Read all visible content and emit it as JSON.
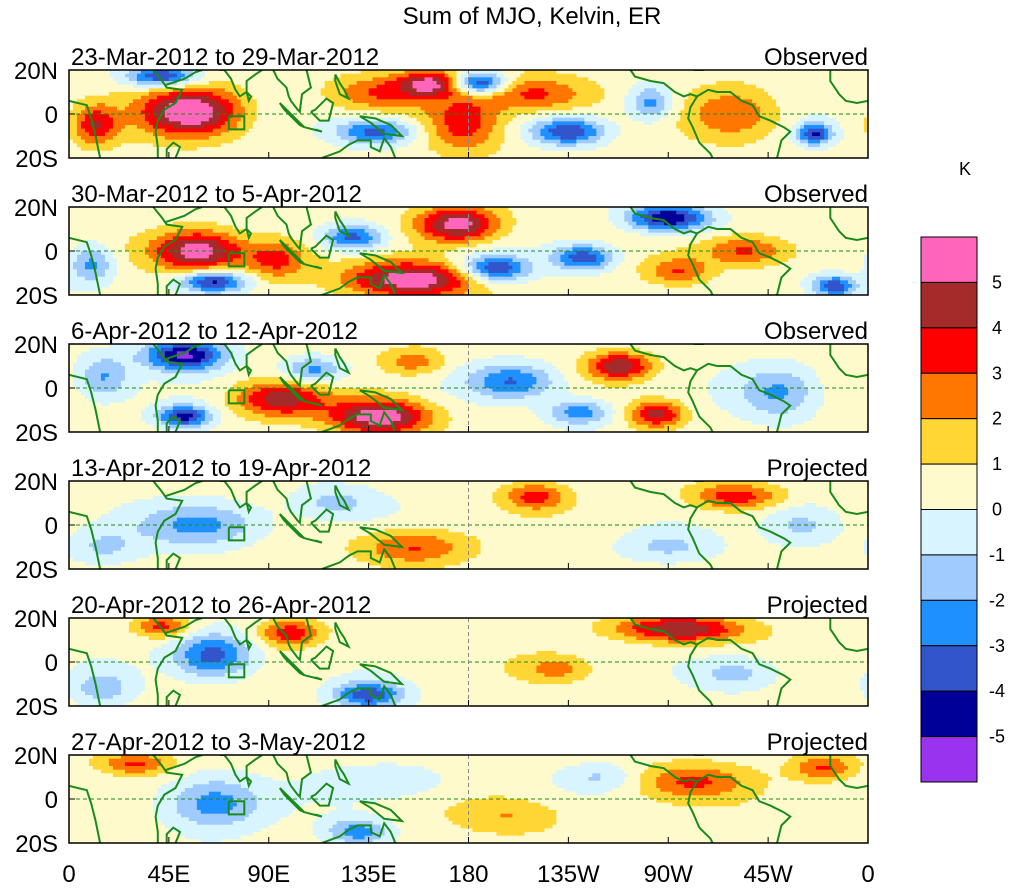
{
  "chart_data": {
    "type": "heatmap",
    "title": "Sum of MJO, Kelvin, ER",
    "x_ticks": [
      "0",
      "45E",
      "90E",
      "135E",
      "180",
      "135W",
      "90W",
      "45W",
      "0"
    ],
    "y_ticks": [
      "20N",
      "0",
      "20S"
    ],
    "xlim_deg_east": [
      0,
      360
    ],
    "ylim_deg_lat": [
      -20,
      20
    ],
    "unit": "K",
    "colorbar_labels": [
      "5",
      "4",
      "3",
      "2",
      "1",
      "0",
      "-1",
      "-2",
      "-3",
      "-4",
      "-5"
    ],
    "levels": [
      -5,
      -4,
      -3,
      -2,
      -1,
      0,
      1,
      2,
      3,
      4,
      5
    ],
    "colors": [
      "#9933ee",
      "#000099",
      "#3355cc",
      "#1e90ff",
      "#9fcbff",
      "#d8f5ff",
      "#fffacc",
      "#ffd633",
      "#ff7700",
      "#ff0000",
      "#a52a2a",
      "#ff66bb"
    ],
    "panels": [
      {
        "period": "23-Mar-2012 to 29-Mar-2012",
        "kind": "Observed",
        "anomalies": [
          {
            "lon": 55,
            "lat": 1,
            "value": 5.8,
            "rx": 22,
            "ry": 11
          },
          {
            "lon": 12,
            "lat": -5,
            "value": 3.5,
            "rx": 10,
            "ry": 9
          },
          {
            "lon": 42,
            "lat": 17,
            "value": -4.6,
            "rx": 16,
            "ry": 5
          },
          {
            "lon": 140,
            "lat": 10,
            "value": 2.5,
            "rx": 22,
            "ry": 8
          },
          {
            "lon": 138,
            "lat": -8,
            "value": -4.0,
            "rx": 18,
            "ry": 6
          },
          {
            "lon": 163,
            "lat": 14,
            "value": 4.4,
            "rx": 14,
            "ry": 6
          },
          {
            "lon": 178,
            "lat": -4,
            "value": 3.2,
            "rx": 17,
            "ry": 13
          },
          {
            "lon": 210,
            "lat": 9,
            "value": 3.0,
            "rx": 24,
            "ry": 8
          },
          {
            "lon": 185,
            "lat": 14,
            "value": -5.2,
            "rx": 12,
            "ry": 5
          },
          {
            "lon": 225,
            "lat": -8,
            "value": -4.3,
            "rx": 16,
            "ry": 6
          },
          {
            "lon": 262,
            "lat": 5,
            "value": -3.0,
            "rx": 10,
            "ry": 8
          },
          {
            "lon": 300,
            "lat": 0,
            "value": 2.4,
            "rx": 20,
            "ry": 12
          },
          {
            "lon": 336,
            "lat": -9,
            "value": -4.5,
            "rx": 8,
            "ry": 5
          }
        ]
      },
      {
        "period": "30-Mar-2012 to 5-Apr-2012",
        "kind": "Observed",
        "anomalies": [
          {
            "lon": 58,
            "lat": 0,
            "value": 5.6,
            "rx": 20,
            "ry": 9
          },
          {
            "lon": 65,
            "lat": -14,
            "value": -4.8,
            "rx": 15,
            "ry": 5
          },
          {
            "lon": 10,
            "lat": -6,
            "value": -3.0,
            "rx": 10,
            "ry": 9
          },
          {
            "lon": 93,
            "lat": -4,
            "value": 3.0,
            "rx": 14,
            "ry": 9
          },
          {
            "lon": 155,
            "lat": -13,
            "value": 5.5,
            "rx": 28,
            "ry": 8
          },
          {
            "lon": 175,
            "lat": 12,
            "value": 5.3,
            "rx": 18,
            "ry": 8
          },
          {
            "lon": 128,
            "lat": 6,
            "value": -4.0,
            "rx": 14,
            "ry": 6
          },
          {
            "lon": 192,
            "lat": -8,
            "value": -4.5,
            "rx": 15,
            "ry": 6
          },
          {
            "lon": 232,
            "lat": -3,
            "value": -4.3,
            "rx": 14,
            "ry": 6
          },
          {
            "lon": 270,
            "lat": 15,
            "value": -5.5,
            "rx": 18,
            "ry": 6
          },
          {
            "lon": 305,
            "lat": 0,
            "value": 3.0,
            "rx": 20,
            "ry": 7
          },
          {
            "lon": 275,
            "lat": -9,
            "value": 2.5,
            "rx": 14,
            "ry": 6
          },
          {
            "lon": 345,
            "lat": -16,
            "value": -4.2,
            "rx": 10,
            "ry": 5
          }
        ]
      },
      {
        "period": "6-Apr-2012 to 12-Apr-2012",
        "kind": "Observed",
        "anomalies": [
          {
            "lon": 52,
            "lat": 15,
            "value": -5.6,
            "rx": 18,
            "ry": 7
          },
          {
            "lon": 15,
            "lat": 5,
            "value": -2.6,
            "rx": 12,
            "ry": 10
          },
          {
            "lon": 52,
            "lat": -13,
            "value": -4.8,
            "rx": 12,
            "ry": 5
          },
          {
            "lon": 95,
            "lat": -5,
            "value": 4.0,
            "rx": 20,
            "ry": 8
          },
          {
            "lon": 140,
            "lat": -13,
            "value": 5.5,
            "rx": 22,
            "ry": 8
          },
          {
            "lon": 110,
            "lat": 8,
            "value": -3.0,
            "rx": 14,
            "ry": 6
          },
          {
            "lon": 155,
            "lat": 12,
            "value": 2.2,
            "rx": 14,
            "ry": 6
          },
          {
            "lon": 200,
            "lat": 3,
            "value": -3.5,
            "rx": 20,
            "ry": 8
          },
          {
            "lon": 248,
            "lat": 10,
            "value": 4.4,
            "rx": 14,
            "ry": 6
          },
          {
            "lon": 230,
            "lat": -11,
            "value": -3.2,
            "rx": 14,
            "ry": 6
          },
          {
            "lon": 265,
            "lat": -12,
            "value": 4.0,
            "rx": 12,
            "ry": 6
          },
          {
            "lon": 320,
            "lat": -2,
            "value": -2.6,
            "rx": 18,
            "ry": 12
          }
        ]
      },
      {
        "period": "13-Apr-2012 to 19-Apr-2012",
        "kind": "Projected",
        "anomalies": [
          {
            "lon": 60,
            "lat": 0,
            "value": -2.8,
            "rx": 28,
            "ry": 10
          },
          {
            "lon": 15,
            "lat": -10,
            "value": -1.5,
            "rx": 15,
            "ry": 8
          },
          {
            "lon": 155,
            "lat": -10,
            "value": 2.8,
            "rx": 24,
            "ry": 8
          },
          {
            "lon": 120,
            "lat": 10,
            "value": -1.8,
            "rx": 20,
            "ry": 8
          },
          {
            "lon": 210,
            "lat": 13,
            "value": 3.0,
            "rx": 14,
            "ry": 6
          },
          {
            "lon": 300,
            "lat": 13,
            "value": 3.2,
            "rx": 20,
            "ry": 6
          },
          {
            "lon": 270,
            "lat": -10,
            "value": -1.5,
            "rx": 22,
            "ry": 7
          },
          {
            "lon": 330,
            "lat": 0,
            "value": -2.0,
            "rx": 18,
            "ry": 10
          }
        ]
      },
      {
        "period": "20-Apr-2012 to 26-Apr-2012",
        "kind": "Projected",
        "anomalies": [
          {
            "lon": 65,
            "lat": 3,
            "value": -4.2,
            "rx": 18,
            "ry": 10
          },
          {
            "lon": 100,
            "lat": 13,
            "value": 3.3,
            "rx": 14,
            "ry": 6
          },
          {
            "lon": 42,
            "lat": 16,
            "value": 3.0,
            "rx": 12,
            "ry": 5
          },
          {
            "lon": 135,
            "lat": -15,
            "value": -4.2,
            "rx": 16,
            "ry": 6
          },
          {
            "lon": 275,
            "lat": 15,
            "value": 4.5,
            "rx": 28,
            "ry": 6
          },
          {
            "lon": 220,
            "lat": -3,
            "value": 2.0,
            "rx": 16,
            "ry": 6
          },
          {
            "lon": 300,
            "lat": -5,
            "value": -2.0,
            "rx": 20,
            "ry": 8
          },
          {
            "lon": 15,
            "lat": -12,
            "value": -2.0,
            "rx": 14,
            "ry": 8
          }
        ]
      },
      {
        "period": "27-Apr-2012 to 3-May-2012",
        "kind": "Projected",
        "anomalies": [
          {
            "lon": 65,
            "lat": -2,
            "value": -3.2,
            "rx": 22,
            "ry": 12
          },
          {
            "lon": 30,
            "lat": 16,
            "value": 2.8,
            "rx": 16,
            "ry": 5
          },
          {
            "lon": 130,
            "lat": -15,
            "value": -3.0,
            "rx": 14,
            "ry": 6
          },
          {
            "lon": 145,
            "lat": 8,
            "value": -1.2,
            "rx": 30,
            "ry": 8
          },
          {
            "lon": 280,
            "lat": 8,
            "value": 2.6,
            "rx": 26,
            "ry": 8
          },
          {
            "lon": 340,
            "lat": 14,
            "value": 2.8,
            "rx": 14,
            "ry": 6
          },
          {
            "lon": 200,
            "lat": -8,
            "value": 1.5,
            "rx": 24,
            "ry": 8
          },
          {
            "lon": 240,
            "lat": 10,
            "value": -1.5,
            "rx": 18,
            "ry": 6
          }
        ]
      }
    ]
  }
}
